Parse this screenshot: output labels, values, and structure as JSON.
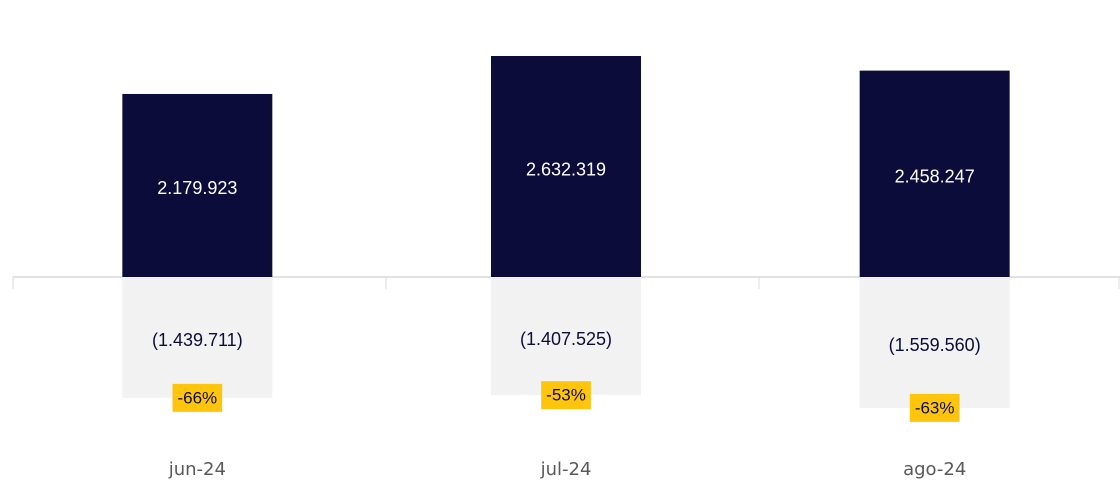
{
  "chart_data": {
    "type": "bar",
    "categories": [
      "jun-24",
      "jul-24",
      "ago-24"
    ],
    "series": [
      {
        "values": [
          2179923,
          2632319,
          2458247
        ],
        "value_labels": [
          "2.179.923",
          "2.632.319",
          "2.458.247"
        ],
        "color": "#0c0c3b",
        "label_color": "#ffffff"
      },
      {
        "values": [
          -1439711,
          -1407525,
          -1559560
        ],
        "value_labels": [
          "(1.439.711)",
          "(1.407.525)",
          "(1.559.560)"
        ],
        "color": "#f2f2f2",
        "label_color": "#0c0c3b"
      }
    ],
    "annotations": [
      "-66%",
      "-53%",
      "-63%"
    ],
    "annotation_color": "#ffc40c"
  }
}
